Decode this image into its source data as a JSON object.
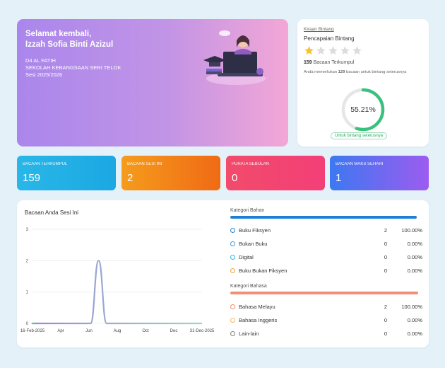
{
  "welcome": {
    "greeting": "Selamat kembali,",
    "name": "Izzah Sofia Binti Azizul",
    "class": "D4 AL FATIH",
    "school": "SEKOLAH KEBANGSAAN SERI TELOK",
    "session": "Sesi 2025/2026"
  },
  "star_card": {
    "tag": "Kiraan Bintang",
    "title": "Pencapaian Bintang",
    "stars_filled": 1,
    "stars_total": 5,
    "collected_count": "159",
    "collected_label": "Bacaan Terkumpul",
    "need_prefix": "Anda memerlukan",
    "need_count": "129",
    "need_suffix": "bacaan untuk bintang seterusnya",
    "progress_text": "55.21%",
    "progress_value": 55.21,
    "next_pill": "Untuk bintang seterusnya",
    "colors": {
      "ring": "#3ac17e",
      "ring_track": "#e6e6e6",
      "star_on": "#f7c22d",
      "star_off": "#dcdcdc"
    }
  },
  "tiles": [
    {
      "label": "BACAAN TERKUMPUL",
      "value": "159",
      "gradient": [
        "#29b7e8",
        "#1ba8e3"
      ]
    },
    {
      "label": "BACAAN SESI INI",
      "value": "2",
      "gradient": [
        "#f59c1c",
        "#f06a15"
      ]
    },
    {
      "label": "PURATA SEBULAN",
      "value": "0",
      "gradient": [
        "#f24b6b",
        "#f33f77"
      ]
    },
    {
      "label": "BACAAN MAKS SEHARI",
      "value": "1",
      "gradient": [
        "#3d78f1",
        "#9c5cf0"
      ]
    }
  ],
  "chart_data": {
    "type": "line",
    "title": "Bacaan Anda Sesi Ini",
    "x_tick_labels": [
      "16-Feb-2025",
      "Apr",
      "Jun",
      "Aug",
      "Oct",
      "Dec",
      "31-Dec-2025"
    ],
    "y_ticks": [
      "0",
      "1",
      "2",
      "3"
    ],
    "ylim": [
      0,
      3
    ],
    "x_range": [
      "2025-02-16",
      "2025-12-31"
    ],
    "series": [
      {
        "points": [
          [
            "2025-02-16",
            0
          ],
          [
            "2025-06-05",
            0
          ],
          [
            "2025-06-20",
            2
          ],
          [
            "2025-07-05",
            0
          ],
          [
            "2025-12-31",
            0
          ]
        ]
      }
    ],
    "colors": {
      "line_start": "#9b86e0",
      "line_end": "#96dcb5",
      "grid": "#eeeeee"
    }
  },
  "kategori_bahan": {
    "title": "Kategori Bahan",
    "bar_color": "#1d7fd8",
    "items": [
      {
        "name": "Buku Fiksyen",
        "count": "2",
        "percent": "100.00%",
        "color": "#2b7fcf"
      },
      {
        "name": "Bukan Buku",
        "count": "0",
        "percent": "0.00%",
        "color": "#4a96d8"
      },
      {
        "name": "Digital",
        "count": "0",
        "percent": "0.00%",
        "color": "#29b7d8"
      },
      {
        "name": "Buku Bukan Fiksyen",
        "count": "0",
        "percent": "0.00%",
        "color": "#f0a23a"
      }
    ]
  },
  "kategori_bahasa": {
    "title": "Kategori Bahasa",
    "bar_color": "#f48e74",
    "items": [
      {
        "name": "Bahasa Melayu",
        "count": "2",
        "percent": "100.00%",
        "color": "#f28b6c"
      },
      {
        "name": "Bahasa Inggeris",
        "count": "0",
        "percent": "0.00%",
        "color": "#f5b56a"
      },
      {
        "name": "Lain-lain",
        "count": "0",
        "percent": "0.00%",
        "color": "#7e7e7e"
      }
    ]
  }
}
